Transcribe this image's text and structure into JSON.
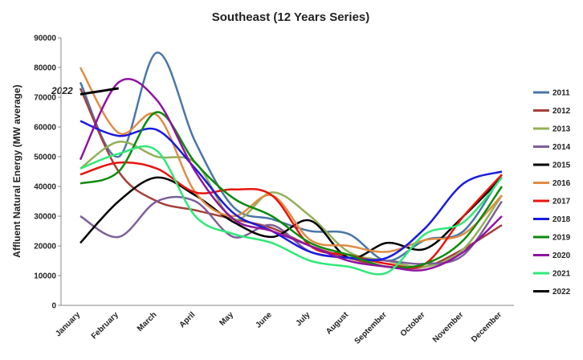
{
  "chart_data": {
    "type": "line",
    "title": "Southeast (12 Years Series)",
    "y_label": "Affluent Natural Energy (MW average)",
    "annotation": "2022",
    "categories": [
      "January",
      "February",
      "March",
      "April",
      "May",
      "June",
      "July",
      "August",
      "September",
      "October",
      "November",
      "December"
    ],
    "ylim": [
      0,
      90000
    ],
    "yticks": [
      0,
      10000,
      20000,
      30000,
      40000,
      50000,
      60000,
      70000,
      80000,
      90000
    ],
    "grid": false,
    "legend": "right",
    "series": [
      {
        "name": "2011",
        "color": "#4a76a8",
        "values": [
          75000,
          50000,
          85000,
          55000,
          33000,
          29000,
          25000,
          24000,
          15000,
          22000,
          25000,
          44000
        ]
      },
      {
        "name": "2012",
        "color": "#a5403c",
        "values": [
          73000,
          45000,
          35000,
          32000,
          29000,
          26000,
          20000,
          16000,
          13000,
          13000,
          19000,
          27000
        ]
      },
      {
        "name": "2013",
        "color": "#93b058",
        "values": [
          46000,
          55000,
          50000,
          48000,
          29000,
          38000,
          30000,
          18000,
          15000,
          13000,
          19000,
          37000
        ]
      },
      {
        "name": "2014",
        "color": "#7d5f9a",
        "values": [
          30000,
          23000,
          35000,
          35000,
          23000,
          27000,
          18000,
          16000,
          15000,
          14000,
          17000,
          35000
        ]
      },
      {
        "name": "2015",
        "color": "#000000",
        "values": [
          21000,
          35000,
          43000,
          37000,
          28000,
          23000,
          28500,
          16000,
          21000,
          19000,
          30000,
          43000
        ]
      },
      {
        "name": "2016",
        "color": "#e08c45",
        "values": [
          80000,
          58000,
          64000,
          38000,
          30000,
          37000,
          22000,
          20000,
          18000,
          22000,
          24000,
          37000
        ]
      },
      {
        "name": "2017",
        "color": "#e8150f",
        "values": [
          44000,
          48000,
          46000,
          38000,
          39000,
          37000,
          20000,
          17000,
          14000,
          14000,
          30000,
          44000
        ]
      },
      {
        "name": "2018",
        "color": "#1a1ae0",
        "values": [
          62000,
          57000,
          59000,
          46000,
          31000,
          25000,
          18000,
          16000,
          16000,
          26000,
          41000,
          45000
        ]
      },
      {
        "name": "2019",
        "color": "#0d8a0d",
        "values": [
          41000,
          45000,
          65000,
          48000,
          36000,
          30000,
          21000,
          17000,
          13000,
          14000,
          22000,
          40000
        ]
      },
      {
        "name": "2020",
        "color": "#8e14a0",
        "values": [
          49000,
          75000,
          69000,
          45000,
          29000,
          25000,
          20000,
          15000,
          13000,
          12000,
          18000,
          30000
        ]
      },
      {
        "name": "2021",
        "color": "#30e878",
        "values": [
          46000,
          51000,
          52000,
          30000,
          24000,
          21000,
          15000,
          13000,
          11000,
          24000,
          28000,
          43000
        ]
      },
      {
        "name": "2022",
        "color": "#000000",
        "values": [
          71000,
          73000,
          null,
          null,
          null,
          null,
          null,
          null,
          null,
          null,
          null,
          null
        ]
      }
    ]
  }
}
